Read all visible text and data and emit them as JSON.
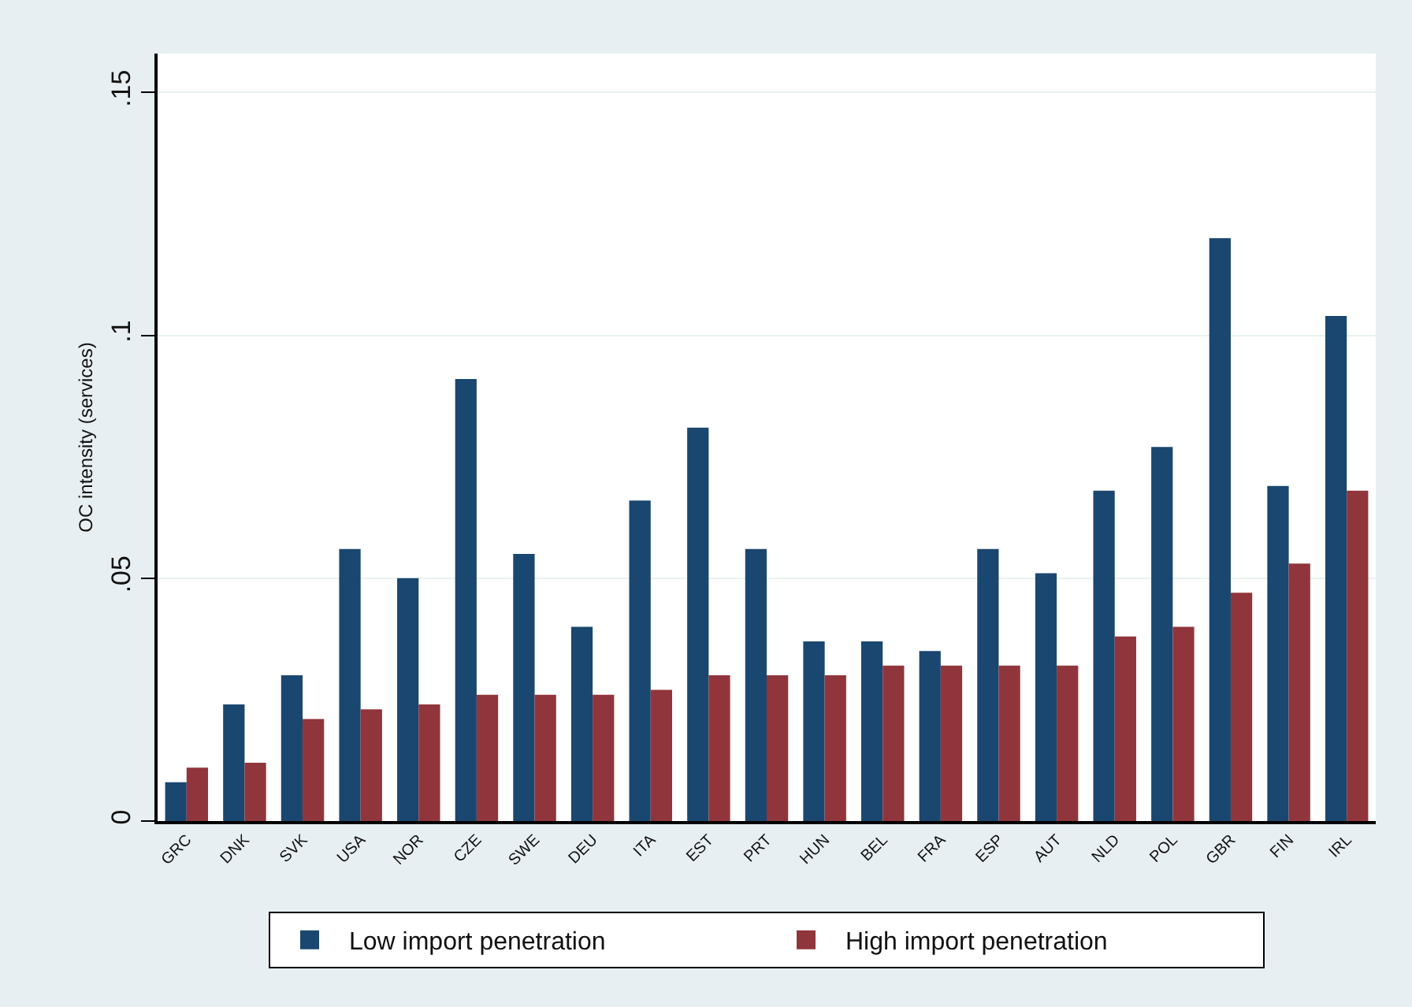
{
  "chart_data": {
    "type": "bar",
    "ylabel": "OC intensity (services)",
    "categories": [
      "GRC",
      "DNK",
      "SVK",
      "USA",
      "NOR",
      "CZE",
      "SWE",
      "DEU",
      "ITA",
      "EST",
      "PRT",
      "HUN",
      "BEL",
      "FRA",
      "ESP",
      "AUT",
      "NLD",
      "POL",
      "GBR",
      "FIN",
      "IRL"
    ],
    "series": [
      {
        "name": "Low import penetration",
        "color": "#1a476f",
        "values": [
          0.008,
          0.024,
          0.03,
          0.056,
          0.05,
          0.091,
          0.055,
          0.04,
          0.066,
          0.081,
          0.056,
          0.037,
          0.037,
          0.035,
          0.056,
          0.051,
          0.068,
          0.077,
          0.12,
          0.069,
          0.104
        ]
      },
      {
        "name": "High import penetration",
        "color": "#90353b",
        "values": [
          0.011,
          0.012,
          0.021,
          0.023,
          0.024,
          0.026,
          0.026,
          0.026,
          0.027,
          0.03,
          0.03,
          0.03,
          0.032,
          0.032,
          0.032,
          0.032,
          0.038,
          0.04,
          0.047,
          0.053,
          0.068
        ]
      }
    ],
    "ylim": [
      0,
      0.158
    ],
    "yticks": [
      0,
      {
        "value": 0.05,
        "label": ".05"
      },
      {
        "value": 0.1,
        "label": ".1"
      },
      {
        "value": 0.15,
        "label": ".15"
      }
    ],
    "grid": "y",
    "legend": "bottom"
  }
}
